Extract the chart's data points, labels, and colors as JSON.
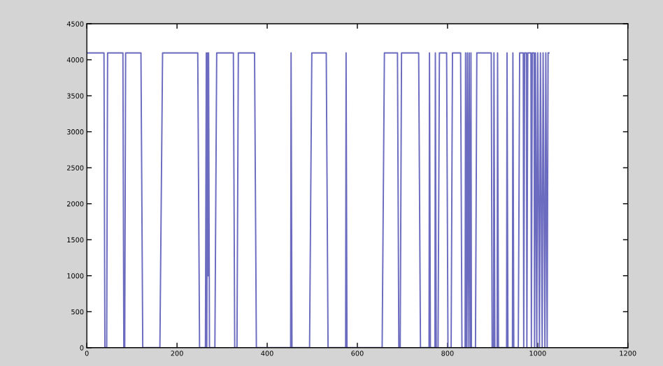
{
  "chart_data": {
    "type": "line",
    "grid": false,
    "marker": "none",
    "line_style": "solid",
    "xlim": [
      0,
      1200
    ],
    "xticks": [
      0,
      200,
      400,
      600,
      800,
      1000,
      1200
    ],
    "ylim": [
      0,
      4500
    ],
    "yticks": [
      0,
      500,
      1000,
      1500,
      2000,
      2500,
      3000,
      3500,
      4000,
      4500
    ],
    "series": [
      {
        "color": "#6b6bbf",
        "x": [
          0,
          38,
          40,
          44,
          46,
          80,
          82,
          84,
          86,
          120,
          124,
          162,
          168,
          246,
          250,
          263,
          265,
          266,
          268,
          269,
          270,
          272,
          284,
          288,
          325,
          328,
          333,
          336,
          372,
          376,
          452,
          453,
          455,
          494,
          499,
          531,
          535,
          574,
          575,
          577,
          655,
          660,
          689,
          692,
          695,
          698,
          736,
          740,
          759,
          760,
          762,
          772,
          773,
          775,
          779,
          782,
          798,
          801,
          808,
          811,
          829,
          832,
          839,
          840,
          842,
          844,
          846,
          848,
          850,
          852,
          853,
          862,
          865,
          897,
          899,
          902,
          903,
          905,
          910,
          911,
          913,
          931,
          932,
          934,
          944,
          945,
          947,
          957,
          960,
          968,
          969,
          971,
          975,
          976,
          978,
          985,
          986,
          988,
          992,
          993,
          995,
          998,
          1000,
          1004,
          1006,
          1010,
          1012,
          1016,
          1018,
          1021,
          1023,
          1025
        ],
        "values": [
          4095,
          4095,
          0,
          0,
          4095,
          4095,
          0,
          0,
          4095,
          4095,
          0,
          0,
          4095,
          4095,
          0,
          0,
          4095,
          0,
          4095,
          1000,
          4095,
          0,
          0,
          4095,
          4095,
          0,
          0,
          4095,
          4095,
          0,
          0,
          4095,
          0,
          0,
          4095,
          4095,
          0,
          0,
          4095,
          0,
          0,
          4095,
          4095,
          0,
          0,
          4095,
          4095,
          0,
          0,
          4095,
          0,
          0,
          4095,
          0,
          0,
          4095,
          4095,
          0,
          0,
          4095,
          4095,
          0,
          0,
          4095,
          0,
          4095,
          0,
          4095,
          0,
          4095,
          0,
          0,
          4095,
          4095,
          0,
          0,
          4095,
          0,
          0,
          4095,
          0,
          0,
          4095,
          0,
          0,
          4095,
          0,
          0,
          4095,
          4095,
          0,
          4095,
          4095,
          0,
          4095,
          4095,
          0,
          4095,
          4095,
          0,
          4095,
          0,
          4095,
          0,
          4095,
          0,
          4095,
          0,
          4095,
          0,
          4095,
          4095
        ]
      }
    ]
  }
}
